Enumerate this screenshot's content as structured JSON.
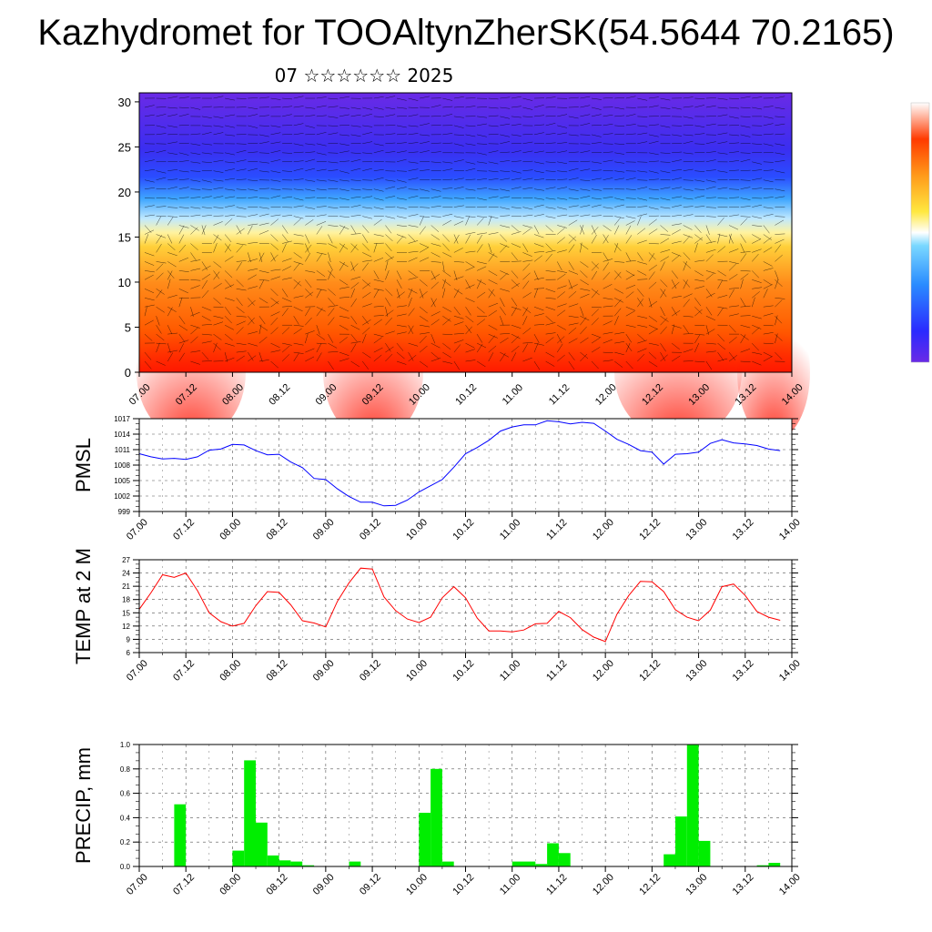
{
  "header": {
    "title": "Kazhydromet for TOOAltynZherSK(54.5644 70.2165)",
    "subtitle": "07 ☆☆☆☆☆☆ 2025"
  },
  "colors": {
    "pmsl_line": "#0000ff",
    "temp_line": "#ff0000",
    "precip_bar": "#00ee00",
    "cross_section_top": "#5a20e6",
    "cross_section_bottom": "#ff1a00"
  },
  "time_ticks": [
    "07.00",
    "07.12",
    "08.00",
    "08.12",
    "09.00",
    "09.12",
    "10.00",
    "10.12",
    "11.00",
    "11.12",
    "12.00",
    "12.12",
    "13.00",
    "13.12",
    "14.00"
  ],
  "chart_data": [
    {
      "type": "heatmap",
      "title": "",
      "xlabel": "",
      "ylabel": "",
      "y_ticks": [
        "0",
        "5",
        "10",
        "15",
        "20",
        "25",
        "30"
      ],
      "ylim": [
        0,
        31
      ],
      "description_colors": "height-time cross-section with wind barbs; warm (red/orange) near surface, yellow around 15, blue/violet aloft",
      "colorbar": "vertical, right side, no labels"
    },
    {
      "type": "line",
      "ylabel": "PMSL",
      "ylim": [
        999,
        1017
      ],
      "y_ticks": [
        "1017",
        "1014",
        "1011",
        "1008",
        "1005",
        "1002",
        "999"
      ],
      "x_hours": [
        0,
        3,
        6,
        9,
        12,
        15,
        18,
        21,
        24,
        27,
        30,
        33,
        36,
        39,
        42,
        45,
        48,
        51,
        54,
        57,
        60,
        63,
        66,
        69,
        72,
        75,
        78,
        81,
        84,
        87,
        90,
        93,
        96,
        99,
        102,
        105,
        108,
        111,
        114,
        117,
        120,
        123,
        126,
        129,
        132,
        135,
        138,
        141,
        144,
        147,
        150,
        153,
        156,
        159,
        162,
        165
      ],
      "series": [
        {
          "values": [
            1010.2,
            1009.6,
            1009.2,
            1009.3,
            1009.1,
            1009.6,
            1010.9,
            1011.1,
            1012.0,
            1011.9,
            1010.8,
            1010.0,
            1010.1,
            1008.6,
            1007.5,
            1005.4,
            1005.2,
            1003.4,
            1001.9,
            1000.8,
            1000.8,
            1000.1,
            1000.2,
            1001.2,
            1002.8,
            1004.0,
            1005.2,
            1007.6,
            1010.2,
            1011.4,
            1012.8,
            1014.6,
            1015.4,
            1015.8,
            1015.8,
            1016.6,
            1016.4,
            1016.0,
            1016.3,
            1016.1,
            1014.6,
            1013.0,
            1012.0,
            1010.8,
            1010.5,
            1008.2,
            1010.1,
            1010.2,
            1010.5,
            1012.2,
            1012.9,
            1012.3,
            1012.1,
            1011.8,
            1011.1,
            1010.8
          ]
        }
      ]
    },
    {
      "type": "line",
      "ylabel": "TEMP at 2 M",
      "ylim": [
        6,
        27
      ],
      "y_ticks": [
        "27",
        "24",
        "21",
        "18",
        "15",
        "12",
        "9",
        "6"
      ],
      "x_hours": [
        0,
        3,
        6,
        9,
        12,
        15,
        18,
        21,
        24,
        27,
        30,
        33,
        36,
        39,
        42,
        45,
        48,
        51,
        54,
        57,
        60,
        63,
        66,
        69,
        72,
        75,
        78,
        81,
        84,
        87,
        90,
        93,
        96,
        99,
        102,
        105,
        108,
        111,
        114,
        117,
        120,
        123,
        126,
        129,
        132,
        135,
        138,
        141,
        144,
        147,
        150,
        153,
        156,
        159,
        162,
        165
      ],
      "series": [
        {
          "values": [
            15.8,
            19.5,
            23.6,
            23.0,
            24.0,
            20.0,
            15.0,
            13.0,
            12.0,
            12.6,
            16.6,
            19.8,
            19.6,
            16.8,
            13.2,
            12.7,
            11.8,
            17.6,
            21.8,
            25.1,
            24.9,
            18.6,
            15.5,
            13.6,
            12.8,
            14.0,
            18.4,
            20.9,
            18.4,
            13.8,
            10.9,
            10.9,
            10.7,
            11.1,
            12.5,
            12.6,
            15.3,
            13.9,
            11.2,
            9.5,
            8.5,
            14.7,
            18.9,
            22.1,
            22.0,
            19.8,
            15.7,
            14.0,
            13.2,
            15.6,
            20.9,
            21.5,
            18.9,
            15.3,
            14.0,
            13.3
          ]
        }
      ]
    },
    {
      "type": "bar",
      "ylabel": "PRECIP, mm",
      "ylim": [
        0,
        1.0
      ],
      "y_ticks": [
        "1.0",
        "0.8",
        "0.6",
        "0.4",
        "0.2",
        "0.0"
      ],
      "bar_width_hours": 3,
      "bars": [
        {
          "start": 9,
          "value": 0.51
        },
        {
          "start": 24,
          "value": 0.13
        },
        {
          "start": 27,
          "value": 0.87
        },
        {
          "start": 30,
          "value": 0.36
        },
        {
          "start": 33,
          "value": 0.09
        },
        {
          "start": 36,
          "value": 0.05
        },
        {
          "start": 39,
          "value": 0.04
        },
        {
          "start": 42,
          "value": 0.01
        },
        {
          "start": 54,
          "value": 0.04
        },
        {
          "start": 72,
          "value": 0.44
        },
        {
          "start": 75,
          "value": 0.8
        },
        {
          "start": 78,
          "value": 0.04
        },
        {
          "start": 96,
          "value": 0.04
        },
        {
          "start": 99,
          "value": 0.04
        },
        {
          "start": 102,
          "value": 0.02
        },
        {
          "start": 105,
          "value": 0.19
        },
        {
          "start": 108,
          "value": 0.11
        },
        {
          "start": 135,
          "value": 0.1
        },
        {
          "start": 138,
          "value": 0.41
        },
        {
          "start": 141,
          "value": 1.0
        },
        {
          "start": 144,
          "value": 0.21
        },
        {
          "start": 159,
          "value": 0.01
        },
        {
          "start": 162,
          "value": 0.03
        }
      ]
    }
  ]
}
